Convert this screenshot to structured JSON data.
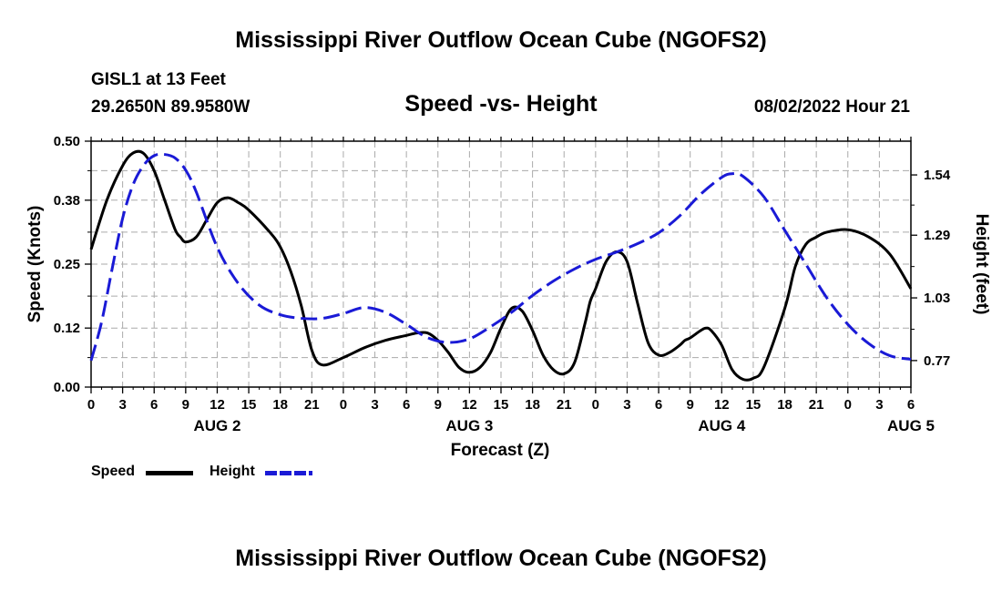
{
  "header": {
    "title": "Mississippi River Outflow Ocean Cube (NGOFS2)",
    "station": "GISL1 at 13 Feet",
    "coordinates": "29.2650N  89.9580W",
    "subtitle": "Speed -vs- Height",
    "datetime": "08/02/2022 Hour 21"
  },
  "footer": {
    "title": "Mississippi River Outflow Ocean Cube (NGOFS2)"
  },
  "legend": {
    "speed_label": "Speed",
    "height_label": "Height"
  },
  "chart_data": {
    "type": "line",
    "title": "Speed -vs- Height",
    "xlabel": "Forecast (Z)",
    "ylabel": "Speed (Knots)",
    "y2label": "Height (feet)",
    "x_range": [
      0,
      78
    ],
    "ylim": [
      0,
      0.5
    ],
    "y2lim": [
      0.66,
      1.68
    ],
    "x_tick_labels": [
      "0",
      "3",
      "6",
      "9",
      "12",
      "15",
      "18",
      "21",
      "0",
      "3",
      "6",
      "9",
      "12",
      "15",
      "18",
      "21",
      "0",
      "3",
      "6",
      "9",
      "12",
      "15",
      "18",
      "21",
      "0",
      "3",
      "6"
    ],
    "y_ticks": [
      0.0,
      0.12,
      0.25,
      0.38,
      0.5
    ],
    "y_tick_labels": [
      "0.00",
      "0.12",
      "0.25",
      "0.38",
      "0.50"
    ],
    "y2_ticks": [
      0.77,
      1.03,
      1.29,
      1.54
    ],
    "y2_tick_labels": [
      "0.77",
      "1.03",
      "1.29",
      "1.54"
    ],
    "day_labels": [
      {
        "label": "AUG 2",
        "hour": 12
      },
      {
        "label": "AUG 3",
        "hour": 36
      },
      {
        "label": "AUG 4",
        "hour": 60
      },
      {
        "label": "AUG 5",
        "hour": 78
      }
    ],
    "series": [
      {
        "name": "Speed",
        "axis": "left",
        "color": "#000000",
        "style": "solid",
        "x": [
          0,
          1.5,
          3,
          4,
          5,
          6,
          7,
          8,
          8.5,
          9,
          10,
          11,
          12,
          13,
          14,
          15,
          17,
          18,
          19,
          20,
          21,
          22,
          24,
          26,
          28,
          30,
          31,
          32,
          33,
          34,
          35,
          36,
          37,
          38,
          39,
          40,
          41,
          42,
          43,
          44,
          45,
          46,
          47,
          47.5,
          48,
          49,
          50,
          51,
          52,
          53,
          54,
          55,
          56,
          56.5,
          57,
          58,
          58.5,
          59,
          60,
          61,
          62,
          63,
          64,
          66,
          67,
          68,
          69,
          70,
          72,
          74,
          76,
          78
        ],
        "values": [
          0.28,
          0.38,
          0.45,
          0.476,
          0.475,
          0.44,
          0.38,
          0.32,
          0.305,
          0.295,
          0.305,
          0.34,
          0.375,
          0.385,
          0.375,
          0.36,
          0.315,
          0.285,
          0.235,
          0.165,
          0.075,
          0.045,
          0.06,
          0.08,
          0.095,
          0.105,
          0.11,
          0.11,
          0.095,
          0.07,
          0.04,
          0.03,
          0.04,
          0.07,
          0.12,
          0.16,
          0.155,
          0.115,
          0.065,
          0.035,
          0.027,
          0.05,
          0.13,
          0.175,
          0.2,
          0.255,
          0.275,
          0.255,
          0.17,
          0.09,
          0.065,
          0.07,
          0.085,
          0.095,
          0.1,
          0.115,
          0.12,
          0.115,
          0.085,
          0.035,
          0.016,
          0.018,
          0.04,
          0.16,
          0.245,
          0.29,
          0.305,
          0.315,
          0.32,
          0.305,
          0.27,
          0.2
        ]
      },
      {
        "name": "Height",
        "axis": "right",
        "color": "#1a1ad6",
        "style": "dashed",
        "x": [
          0,
          1,
          2,
          3,
          4,
          5,
          6,
          7,
          8,
          9,
          10,
          12,
          14,
          16,
          18,
          20,
          22,
          24,
          26,
          28,
          30,
          32,
          34,
          36,
          38,
          40,
          42,
          44,
          46,
          48,
          50,
          52,
          54,
          56,
          58,
          60,
          61,
          62,
          64,
          66,
          68,
          70,
          72,
          74,
          76,
          78
        ],
        "values": [
          0.77,
          0.93,
          1.15,
          1.36,
          1.5,
          1.58,
          1.62,
          1.625,
          1.61,
          1.56,
          1.47,
          1.24,
          1.09,
          1.0,
          0.96,
          0.945,
          0.945,
          0.965,
          0.99,
          0.97,
          0.92,
          0.865,
          0.845,
          0.86,
          0.91,
          0.97,
          1.04,
          1.1,
          1.15,
          1.19,
          1.22,
          1.255,
          1.3,
          1.37,
          1.46,
          1.53,
          1.545,
          1.535,
          1.45,
          1.31,
          1.17,
          1.03,
          0.92,
          0.84,
          0.79,
          0.775
        ]
      }
    ]
  }
}
